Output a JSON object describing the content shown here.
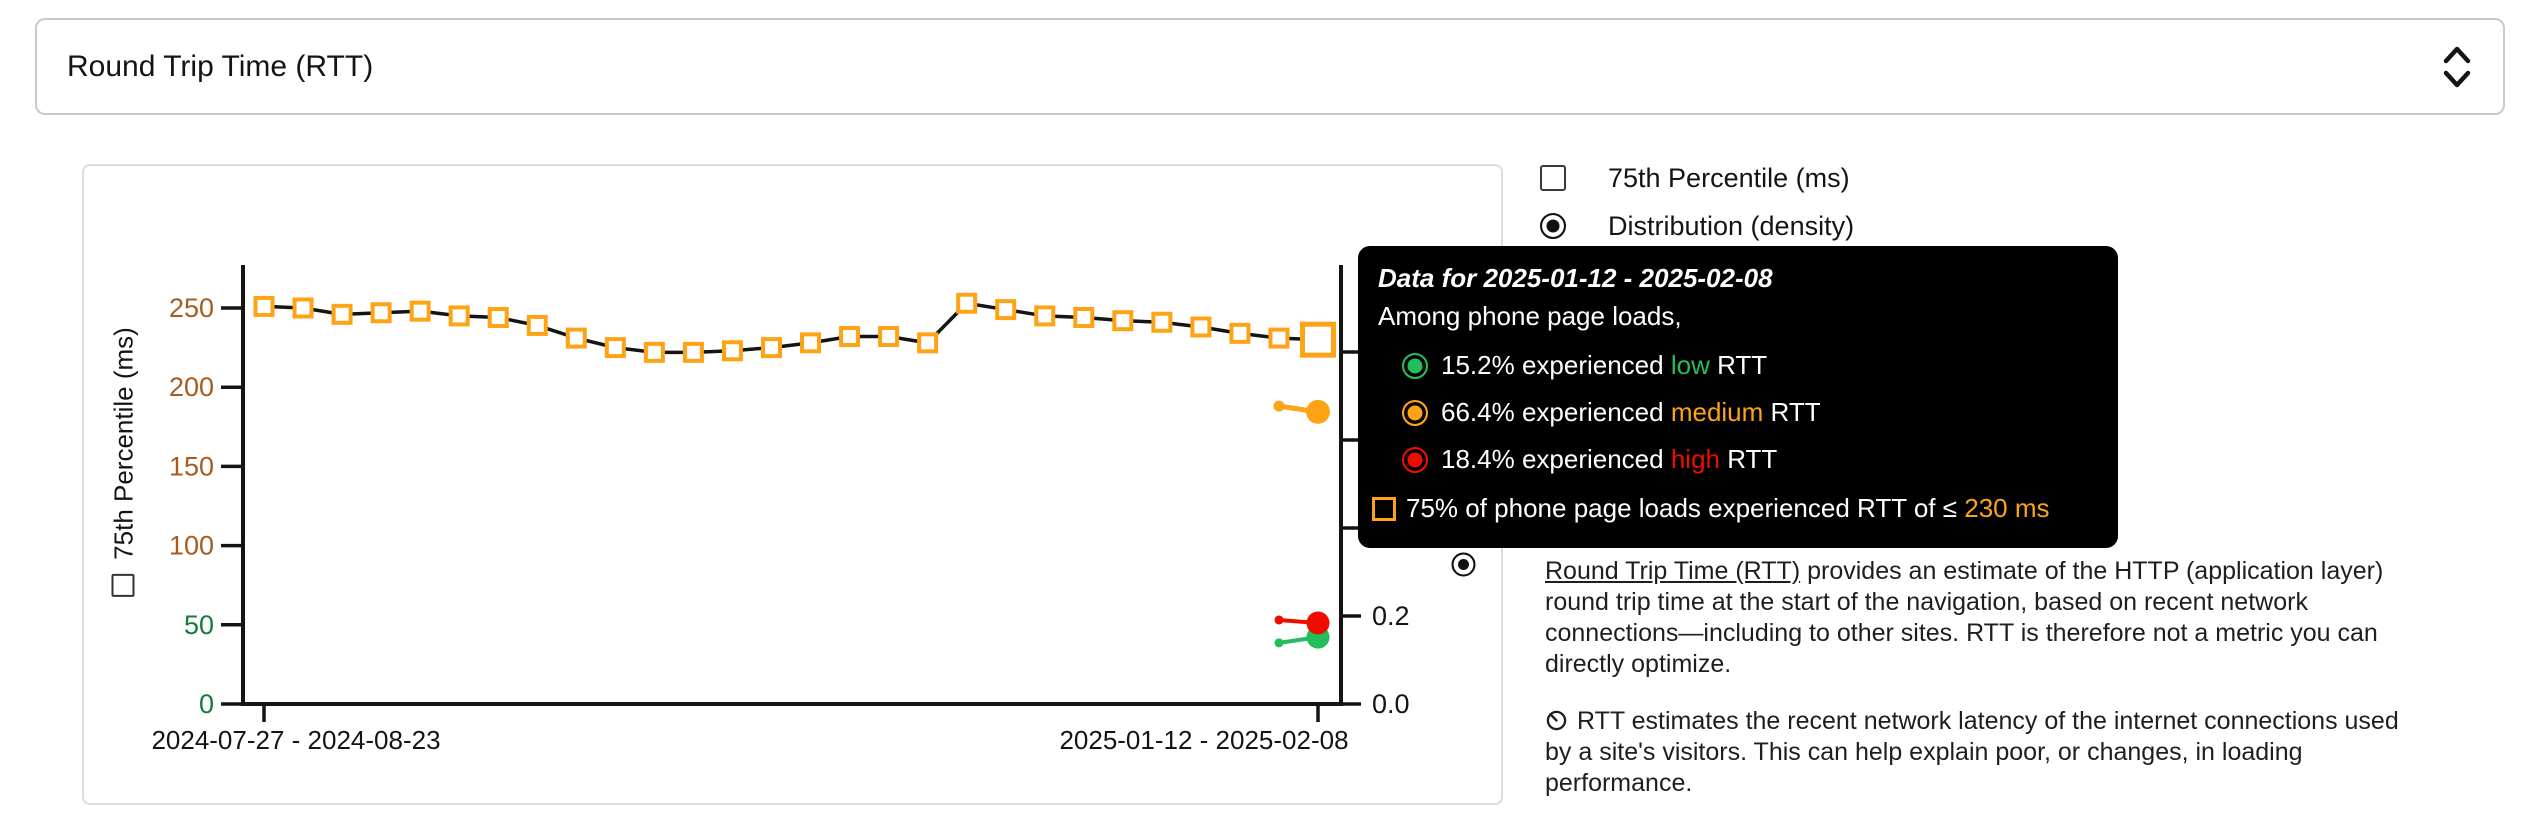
{
  "selector": {
    "label": "Round Trip Time (RTT)"
  },
  "legend": {
    "percentile": {
      "label": "75th Percentile (ms)",
      "checked": false
    },
    "distribution": {
      "label": "Distribution (density)",
      "selected": true
    }
  },
  "tooltip": {
    "title": "Data for 2025-01-12 - 2025-02-08",
    "subtitle": "Among phone page loads,",
    "rows": [
      {
        "rating": "low",
        "pre": "15.2% experienced ",
        "keyword": "low",
        "post": " RTT"
      },
      {
        "rating": "medium",
        "pre": "66.4% experienced ",
        "keyword": "medium",
        "post": " RTT"
      },
      {
        "rating": "high",
        "pre": "18.4% experienced ",
        "keyword": "high",
        "post": " RTT"
      }
    ],
    "percentile_row": {
      "pre": "75% of phone page loads experienced RTT of ≤ ",
      "value": "230 ms"
    }
  },
  "description": {
    "link_text": "Round Trip Time (RTT)",
    "line1_rest": " provides an estimate of the HTTP (application layer)",
    "line2": "round trip time at the start of the navigation, based on recent network",
    "line3": "connections—including to other sites. RTT is therefore not a metric you can",
    "line4": "directly optimize."
  },
  "note": {
    "line1": "RTT estimates the recent network latency of the internet connections used",
    "line2": "by a site's visitors. This can help explain poor, or changes, in loading",
    "line3": "performance."
  },
  "colors": {
    "low": "#23BE5C",
    "medium": "#FFA316",
    "high": "#EE0D00",
    "marker": "#FFA316",
    "line": "#141414",
    "axis_medium": "#A85B1E",
    "axis_good": "#127C3F"
  },
  "chart_data": {
    "type": "line",
    "title": "Round Trip Time (RTT) over collection periods",
    "x_axis": {
      "tick_labels": [
        "2024-07-27 - 2024-08-23",
        "2025-01-12 - 2025-02-08"
      ],
      "tick_indexes": [
        0,
        27
      ]
    },
    "y_left": {
      "label": "75th Percentile (ms)",
      "range": [
        0,
        275
      ],
      "ticks": [
        {
          "value": 0,
          "rating": "good"
        },
        {
          "value": 50,
          "rating": "good"
        },
        {
          "value": 100,
          "rating": "medium"
        },
        {
          "value": 150,
          "rating": "medium"
        },
        {
          "value": 200,
          "rating": "medium"
        },
        {
          "value": 250,
          "rating": "medium"
        }
      ]
    },
    "y_right": {
      "label": "Distribution (density)",
      "range": [
        0,
        1
      ],
      "tick_values": [
        0,
        0.2,
        0.4,
        0.6,
        0.8
      ],
      "visible_tick_labels": [
        "0.0",
        "0.2"
      ]
    },
    "series": [
      {
        "name": "75th Percentile (ms)",
        "marker": "open-square",
        "values": [
          251,
          250,
          246,
          247,
          248,
          245,
          244,
          239,
          231,
          225,
          222,
          222,
          223,
          225,
          228,
          232,
          232,
          228,
          253,
          249,
          245,
          244,
          242,
          241,
          238,
          234,
          231,
          230
        ],
        "highlight_last": true
      }
    ],
    "density_series": [
      {
        "rating": "low",
        "points": [
          {
            "index": 26,
            "value": 0.139
          },
          {
            "index": 27,
            "value": 0.152
          }
        ]
      },
      {
        "rating": "high",
        "points": [
          {
            "index": 26,
            "value": 0.191
          },
          {
            "index": 27,
            "value": 0.184
          }
        ]
      },
      {
        "rating": "medium",
        "points": [
          {
            "index": 26,
            "value": 0.677
          },
          {
            "index": 27,
            "value": 0.664
          }
        ]
      }
    ]
  }
}
